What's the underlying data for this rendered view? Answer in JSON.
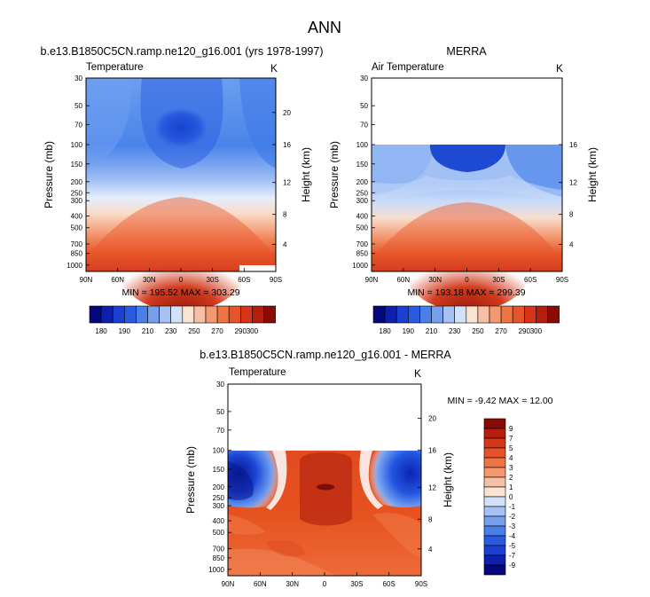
{
  "figure": {
    "title": "ANN"
  },
  "colorbar_levels": {
    "abs": [
      "180",
      "190",
      "210",
      "230",
      "250",
      "270",
      "290",
      "300"
    ],
    "diff": [
      "9",
      "7",
      "5",
      "4",
      "3",
      "2",
      "1",
      "0",
      "-1",
      "-2",
      "-3",
      "-4",
      "-5",
      "-7",
      "-9"
    ]
  },
  "chart_data": [
    {
      "type": "heatmap",
      "title": "b.e13.B1850C5CN.ramp.ne120_g16.001 (yrs 1978-1997)",
      "left_label": "Temperature",
      "right_label": "K",
      "xlabel": "",
      "ylabel": "Pressure (mb)",
      "y2label": "Height (km)",
      "x_ticks": [
        "90N",
        "60N",
        "30N",
        "0",
        "30S",
        "60S",
        "90S"
      ],
      "y_ticks": [
        "30",
        "50",
        "70",
        "100",
        "150",
        "200",
        "250",
        "300",
        "400",
        "500",
        "700",
        "850",
        "1000"
      ],
      "y2_ticks": [
        "20",
        "16",
        "12",
        "8",
        "4"
      ],
      "stats": "MIN = 195.52   MAX = 303.29",
      "min": 195.52,
      "max": 303.29,
      "latitudes": [
        90,
        60,
        30,
        0,
        -30,
        -60,
        -90
      ],
      "levels_mb": [
        30,
        50,
        70,
        100,
        150,
        200,
        250,
        300,
        400,
        500,
        700,
        850,
        1000
      ]
    },
    {
      "type": "heatmap",
      "title": "MERRA",
      "left_label": "Air Temperature",
      "right_label": "K",
      "xlabel": "",
      "ylabel": "Pressure (mb)",
      "y2label": "Height (km)",
      "x_ticks": [
        "90N",
        "60N",
        "30N",
        "0",
        "30S",
        "60S",
        "90S"
      ],
      "y_ticks": [
        "30",
        "50",
        "70",
        "100",
        "150",
        "200",
        "250",
        "300",
        "400",
        "500",
        "700",
        "850",
        "1000"
      ],
      "y2_ticks": [
        "16",
        "12",
        "8",
        "4"
      ],
      "stats": "MIN = 193.18   MAX = 299.39",
      "min": 193.18,
      "max": 299.39,
      "data_top_mb": 100
    },
    {
      "type": "heatmap",
      "title": "b.e13.B1850C5CN.ramp.ne120_g16.001 - MERRA",
      "left_label": "Temperature",
      "right_label": "K",
      "xlabel": "",
      "ylabel": "Pressure (mb)",
      "y2label": "Height (km)",
      "x_ticks": [
        "90N",
        "60N",
        "30N",
        "0",
        "30S",
        "60S",
        "90S"
      ],
      "y_ticks": [
        "30",
        "50",
        "70",
        "100",
        "150",
        "200",
        "250",
        "300",
        "400",
        "500",
        "700",
        "850",
        "1000"
      ],
      "y2_ticks": [
        "20",
        "16",
        "12",
        "8",
        "4"
      ],
      "stats": "MIN =  -9.42   MAX =  12.00",
      "min": -9.42,
      "max": 12.0,
      "data_top_mb": 100
    }
  ]
}
